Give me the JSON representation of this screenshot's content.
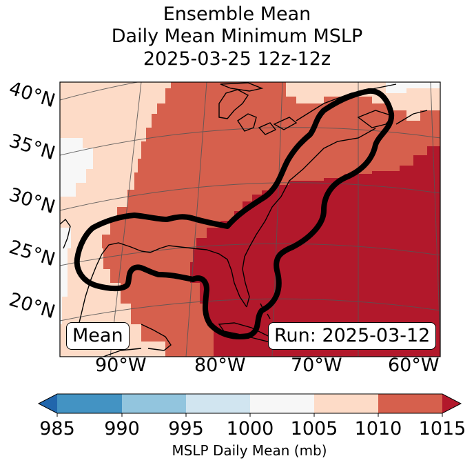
{
  "title": {
    "line1": "Ensemble Mean",
    "line2": "Daily Mean Minimum MSLP",
    "line3": "2025-03-25 12z-12z"
  },
  "map": {
    "lat_labels": [
      "40°N",
      "35°N",
      "30°N",
      "25°N",
      "20°N"
    ],
    "lon_labels": [
      "90°W",
      "80°W",
      "70°W",
      "60°W"
    ],
    "mean_label": "Mean",
    "run_label": "Run: 2025-03-12",
    "colors": {
      "c1000_1005": "#f7f7f7",
      "c1005_1010": "#fddbc7",
      "c1010_1015": "#d6604d",
      "c1015_plus": "#b2182b",
      "contour": "#000000",
      "coast": "#000000",
      "grid": "#555555"
    }
  },
  "colorbar": {
    "label": "MSLP Daily Mean (mb)",
    "ticks": [
      "985",
      "990",
      "995",
      "1000",
      "1005",
      "1010",
      "1015"
    ],
    "extend": "both",
    "bins": [
      {
        "range": "<985",
        "color": "#2166ac"
      },
      {
        "range": "985-990",
        "color": "#4393c3"
      },
      {
        "range": "990-995",
        "color": "#92c5de"
      },
      {
        "range": "995-1000",
        "color": "#d1e5f0"
      },
      {
        "range": "1000-1005",
        "color": "#f7f7f7"
      },
      {
        "range": "1005-1010",
        "color": "#fddbc7"
      },
      {
        "range": "1010-1015",
        "color": "#d6604d"
      },
      {
        "range": ">1015",
        "color": "#b2182b"
      }
    ]
  }
}
